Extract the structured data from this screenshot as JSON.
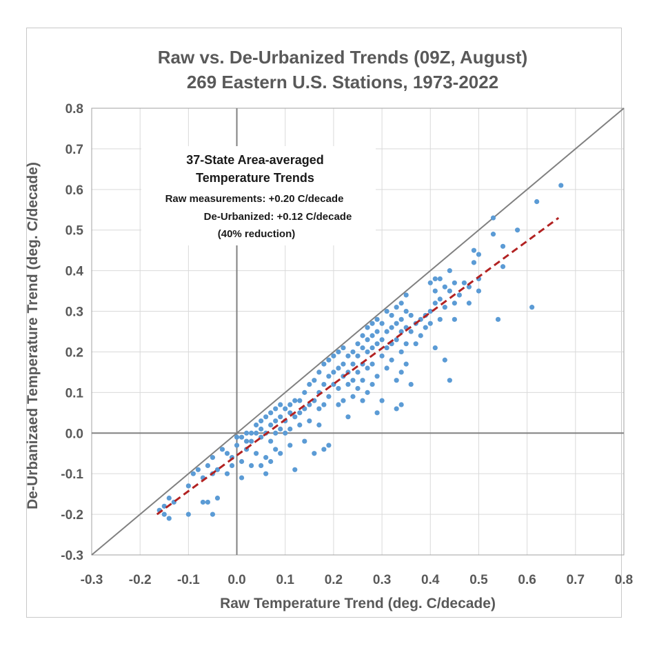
{
  "chart_data": {
    "type": "scatter",
    "title": "Raw vs. De-Urbanized Trends (09Z, August)",
    "subtitle": "269 Eastern U.S. Stations, 1973-2022",
    "xlabel": "Raw Temperature Trend (deg. C/decade)",
    "ylabel": "De-Urbanizaed Temperature Trend (deg. C/decade)",
    "xlim": [
      -0.3,
      0.8
    ],
    "ylim": [
      -0.3,
      0.8
    ],
    "x_ticks": [
      "-0.3",
      "-0.2",
      "-0.1",
      "0.0",
      "0.1",
      "0.2",
      "0.3",
      "0.4",
      "0.5",
      "0.6",
      "0.7",
      "0.8"
    ],
    "y_ticks": [
      "-0.3",
      "-0.2",
      "-0.1",
      "0.0",
      "0.1",
      "0.2",
      "0.3",
      "0.4",
      "0.5",
      "0.6",
      "0.7",
      "0.8"
    ],
    "grid": true,
    "annotation": {
      "line1": "37-State Area-averaged",
      "line2": "Temperature Trends",
      "line3": "Raw measurements: +0.20 C/decade",
      "line4": "De-Urbanized: +0.12 C/decade",
      "line5": "(40% reduction)"
    },
    "reference_line": {
      "style": "1:1 line",
      "x": [
        -0.3,
        0.8
      ],
      "y": [
        -0.3,
        0.8
      ],
      "color": "#808080"
    },
    "fit_line": {
      "style": "dashed",
      "x": [
        -0.165,
        0.665
      ],
      "y": [
        -0.2,
        0.53
      ],
      "color": "#b22222"
    },
    "series": [
      {
        "marker_color": "#5b9bd5",
        "points": [
          [
            -0.16,
            -0.19
          ],
          [
            -0.15,
            -0.18
          ],
          [
            -0.15,
            -0.2
          ],
          [
            -0.14,
            -0.16
          ],
          [
            -0.14,
            -0.21
          ],
          [
            -0.13,
            -0.17
          ],
          [
            -0.1,
            -0.2
          ],
          [
            -0.1,
            -0.13
          ],
          [
            -0.09,
            -0.1
          ],
          [
            -0.08,
            -0.09
          ],
          [
            -0.07,
            -0.11
          ],
          [
            -0.07,
            -0.17
          ],
          [
            -0.06,
            -0.17
          ],
          [
            -0.06,
            -0.08
          ],
          [
            -0.05,
            -0.06
          ],
          [
            -0.05,
            -0.1
          ],
          [
            -0.05,
            -0.2
          ],
          [
            -0.04,
            -0.16
          ],
          [
            -0.04,
            -0.09
          ],
          [
            -0.03,
            -0.04
          ],
          [
            -0.02,
            -0.05
          ],
          [
            -0.02,
            -0.1
          ],
          [
            -0.01,
            -0.06
          ],
          [
            -0.01,
            -0.08
          ],
          [
            0.0,
            -0.03
          ],
          [
            0.0,
            -0.01
          ],
          [
            0.01,
            -0.01
          ],
          [
            0.01,
            -0.07
          ],
          [
            0.01,
            -0.11
          ],
          [
            0.02,
            -0.04
          ],
          [
            0.02,
            0.0
          ],
          [
            0.02,
            -0.02
          ],
          [
            0.03,
            -0.08
          ],
          [
            0.03,
            -0.02
          ],
          [
            0.03,
            0.0
          ],
          [
            0.04,
            0.0
          ],
          [
            0.04,
            0.02
          ],
          [
            0.04,
            -0.05
          ],
          [
            0.05,
            0.01
          ],
          [
            0.05,
            0.03
          ],
          [
            0.05,
            -0.08
          ],
          [
            0.05,
            -0.01
          ],
          [
            0.06,
            0.04
          ],
          [
            0.06,
            0.0
          ],
          [
            0.06,
            -0.06
          ],
          [
            0.06,
            -0.1
          ],
          [
            0.07,
            0.05
          ],
          [
            0.07,
            0.02
          ],
          [
            0.07,
            -0.07
          ],
          [
            0.07,
            -0.02
          ],
          [
            0.08,
            0.06
          ],
          [
            0.08,
            0.03
          ],
          [
            0.08,
            0.0
          ],
          [
            0.08,
            -0.04
          ],
          [
            0.09,
            0.07
          ],
          [
            0.09,
            0.04
          ],
          [
            0.09,
            0.01
          ],
          [
            0.09,
            -0.05
          ],
          [
            0.1,
            0.06
          ],
          [
            0.1,
            0.03
          ],
          [
            0.1,
            0.0
          ],
          [
            0.11,
            0.07
          ],
          [
            0.11,
            0.05
          ],
          [
            0.11,
            0.01
          ],
          [
            0.11,
            -0.03
          ],
          [
            0.12,
            0.08
          ],
          [
            0.12,
            0.04
          ],
          [
            0.12,
            -0.09
          ],
          [
            0.13,
            0.08
          ],
          [
            0.13,
            0.05
          ],
          [
            0.13,
            0.02
          ],
          [
            0.14,
            0.1
          ],
          [
            0.14,
            0.06
          ],
          [
            0.14,
            -0.02
          ],
          [
            0.15,
            0.12
          ],
          [
            0.15,
            0.07
          ],
          [
            0.15,
            0.03
          ],
          [
            0.16,
            0.13
          ],
          [
            0.16,
            0.08
          ],
          [
            0.16,
            -0.05
          ],
          [
            0.17,
            0.15
          ],
          [
            0.17,
            0.1
          ],
          [
            0.17,
            0.06
          ],
          [
            0.17,
            0.02
          ],
          [
            0.18,
            0.17
          ],
          [
            0.18,
            0.12
          ],
          [
            0.18,
            0.07
          ],
          [
            0.18,
            -0.04
          ],
          [
            0.19,
            0.18
          ],
          [
            0.19,
            0.14
          ],
          [
            0.19,
            0.09
          ],
          [
            0.19,
            -0.03
          ],
          [
            0.2,
            0.19
          ],
          [
            0.2,
            0.15
          ],
          [
            0.2,
            0.12
          ],
          [
            0.21,
            0.2
          ],
          [
            0.21,
            0.16
          ],
          [
            0.21,
            0.07
          ],
          [
            0.21,
            0.11
          ],
          [
            0.22,
            0.21
          ],
          [
            0.22,
            0.17
          ],
          [
            0.22,
            0.14
          ],
          [
            0.22,
            0.08
          ],
          [
            0.23,
            0.19
          ],
          [
            0.23,
            0.15
          ],
          [
            0.23,
            0.12
          ],
          [
            0.23,
            0.04
          ],
          [
            0.24,
            0.2
          ],
          [
            0.24,
            0.17
          ],
          [
            0.24,
            0.13
          ],
          [
            0.24,
            0.09
          ],
          [
            0.25,
            0.22
          ],
          [
            0.25,
            0.19
          ],
          [
            0.25,
            0.15
          ],
          [
            0.25,
            0.11
          ],
          [
            0.26,
            0.24
          ],
          [
            0.26,
            0.21
          ],
          [
            0.26,
            0.17
          ],
          [
            0.26,
            0.13
          ],
          [
            0.26,
            0.08
          ],
          [
            0.27,
            0.26
          ],
          [
            0.27,
            0.23
          ],
          [
            0.27,
            0.2
          ],
          [
            0.27,
            0.16
          ],
          [
            0.27,
            0.1
          ],
          [
            0.28,
            0.27
          ],
          [
            0.28,
            0.24
          ],
          [
            0.28,
            0.21
          ],
          [
            0.28,
            0.17
          ],
          [
            0.28,
            0.12
          ],
          [
            0.29,
            0.28
          ],
          [
            0.29,
            0.25
          ],
          [
            0.29,
            0.22
          ],
          [
            0.29,
            0.14
          ],
          [
            0.29,
            0.05
          ],
          [
            0.3,
            0.27
          ],
          [
            0.3,
            0.23
          ],
          [
            0.3,
            0.19
          ],
          [
            0.3,
            0.08
          ],
          [
            0.31,
            0.3
          ],
          [
            0.31,
            0.25
          ],
          [
            0.31,
            0.21
          ],
          [
            0.31,
            0.16
          ],
          [
            0.32,
            0.29
          ],
          [
            0.32,
            0.26
          ],
          [
            0.32,
            0.22
          ],
          [
            0.32,
            0.18
          ],
          [
            0.33,
            0.31
          ],
          [
            0.33,
            0.27
          ],
          [
            0.33,
            0.23
          ],
          [
            0.33,
            0.13
          ],
          [
            0.33,
            0.06
          ],
          [
            0.34,
            0.32
          ],
          [
            0.34,
            0.28
          ],
          [
            0.34,
            0.25
          ],
          [
            0.34,
            0.2
          ],
          [
            0.34,
            0.15
          ],
          [
            0.34,
            0.07
          ],
          [
            0.35,
            0.34
          ],
          [
            0.35,
            0.3
          ],
          [
            0.35,
            0.26
          ],
          [
            0.35,
            0.22
          ],
          [
            0.35,
            0.17
          ],
          [
            0.36,
            0.29
          ],
          [
            0.36,
            0.25
          ],
          [
            0.36,
            0.12
          ],
          [
            0.37,
            0.27
          ],
          [
            0.37,
            0.22
          ],
          [
            0.38,
            0.28
          ],
          [
            0.38,
            0.24
          ],
          [
            0.39,
            0.29
          ],
          [
            0.39,
            0.26
          ],
          [
            0.4,
            0.37
          ],
          [
            0.4,
            0.3
          ],
          [
            0.4,
            0.27
          ],
          [
            0.41,
            0.38
          ],
          [
            0.41,
            0.35
          ],
          [
            0.41,
            0.32
          ],
          [
            0.41,
            0.21
          ],
          [
            0.42,
            0.38
          ],
          [
            0.42,
            0.33
          ],
          [
            0.42,
            0.28
          ],
          [
            0.43,
            0.36
          ],
          [
            0.43,
            0.31
          ],
          [
            0.43,
            0.18
          ],
          [
            0.44,
            0.4
          ],
          [
            0.44,
            0.35
          ],
          [
            0.44,
            0.13
          ],
          [
            0.45,
            0.37
          ],
          [
            0.45,
            0.32
          ],
          [
            0.45,
            0.28
          ],
          [
            0.46,
            0.34
          ],
          [
            0.47,
            0.37
          ],
          [
            0.48,
            0.36
          ],
          [
            0.48,
            0.32
          ],
          [
            0.49,
            0.45
          ],
          [
            0.49,
            0.42
          ],
          [
            0.5,
            0.44
          ],
          [
            0.5,
            0.38
          ],
          [
            0.5,
            0.35
          ],
          [
            0.53,
            0.53
          ],
          [
            0.53,
            0.49
          ],
          [
            0.54,
            0.28
          ],
          [
            0.55,
            0.46
          ],
          [
            0.55,
            0.41
          ],
          [
            0.58,
            0.5
          ],
          [
            0.61,
            0.31
          ],
          [
            0.62,
            0.57
          ],
          [
            0.67,
            0.61
          ]
        ]
      }
    ]
  }
}
